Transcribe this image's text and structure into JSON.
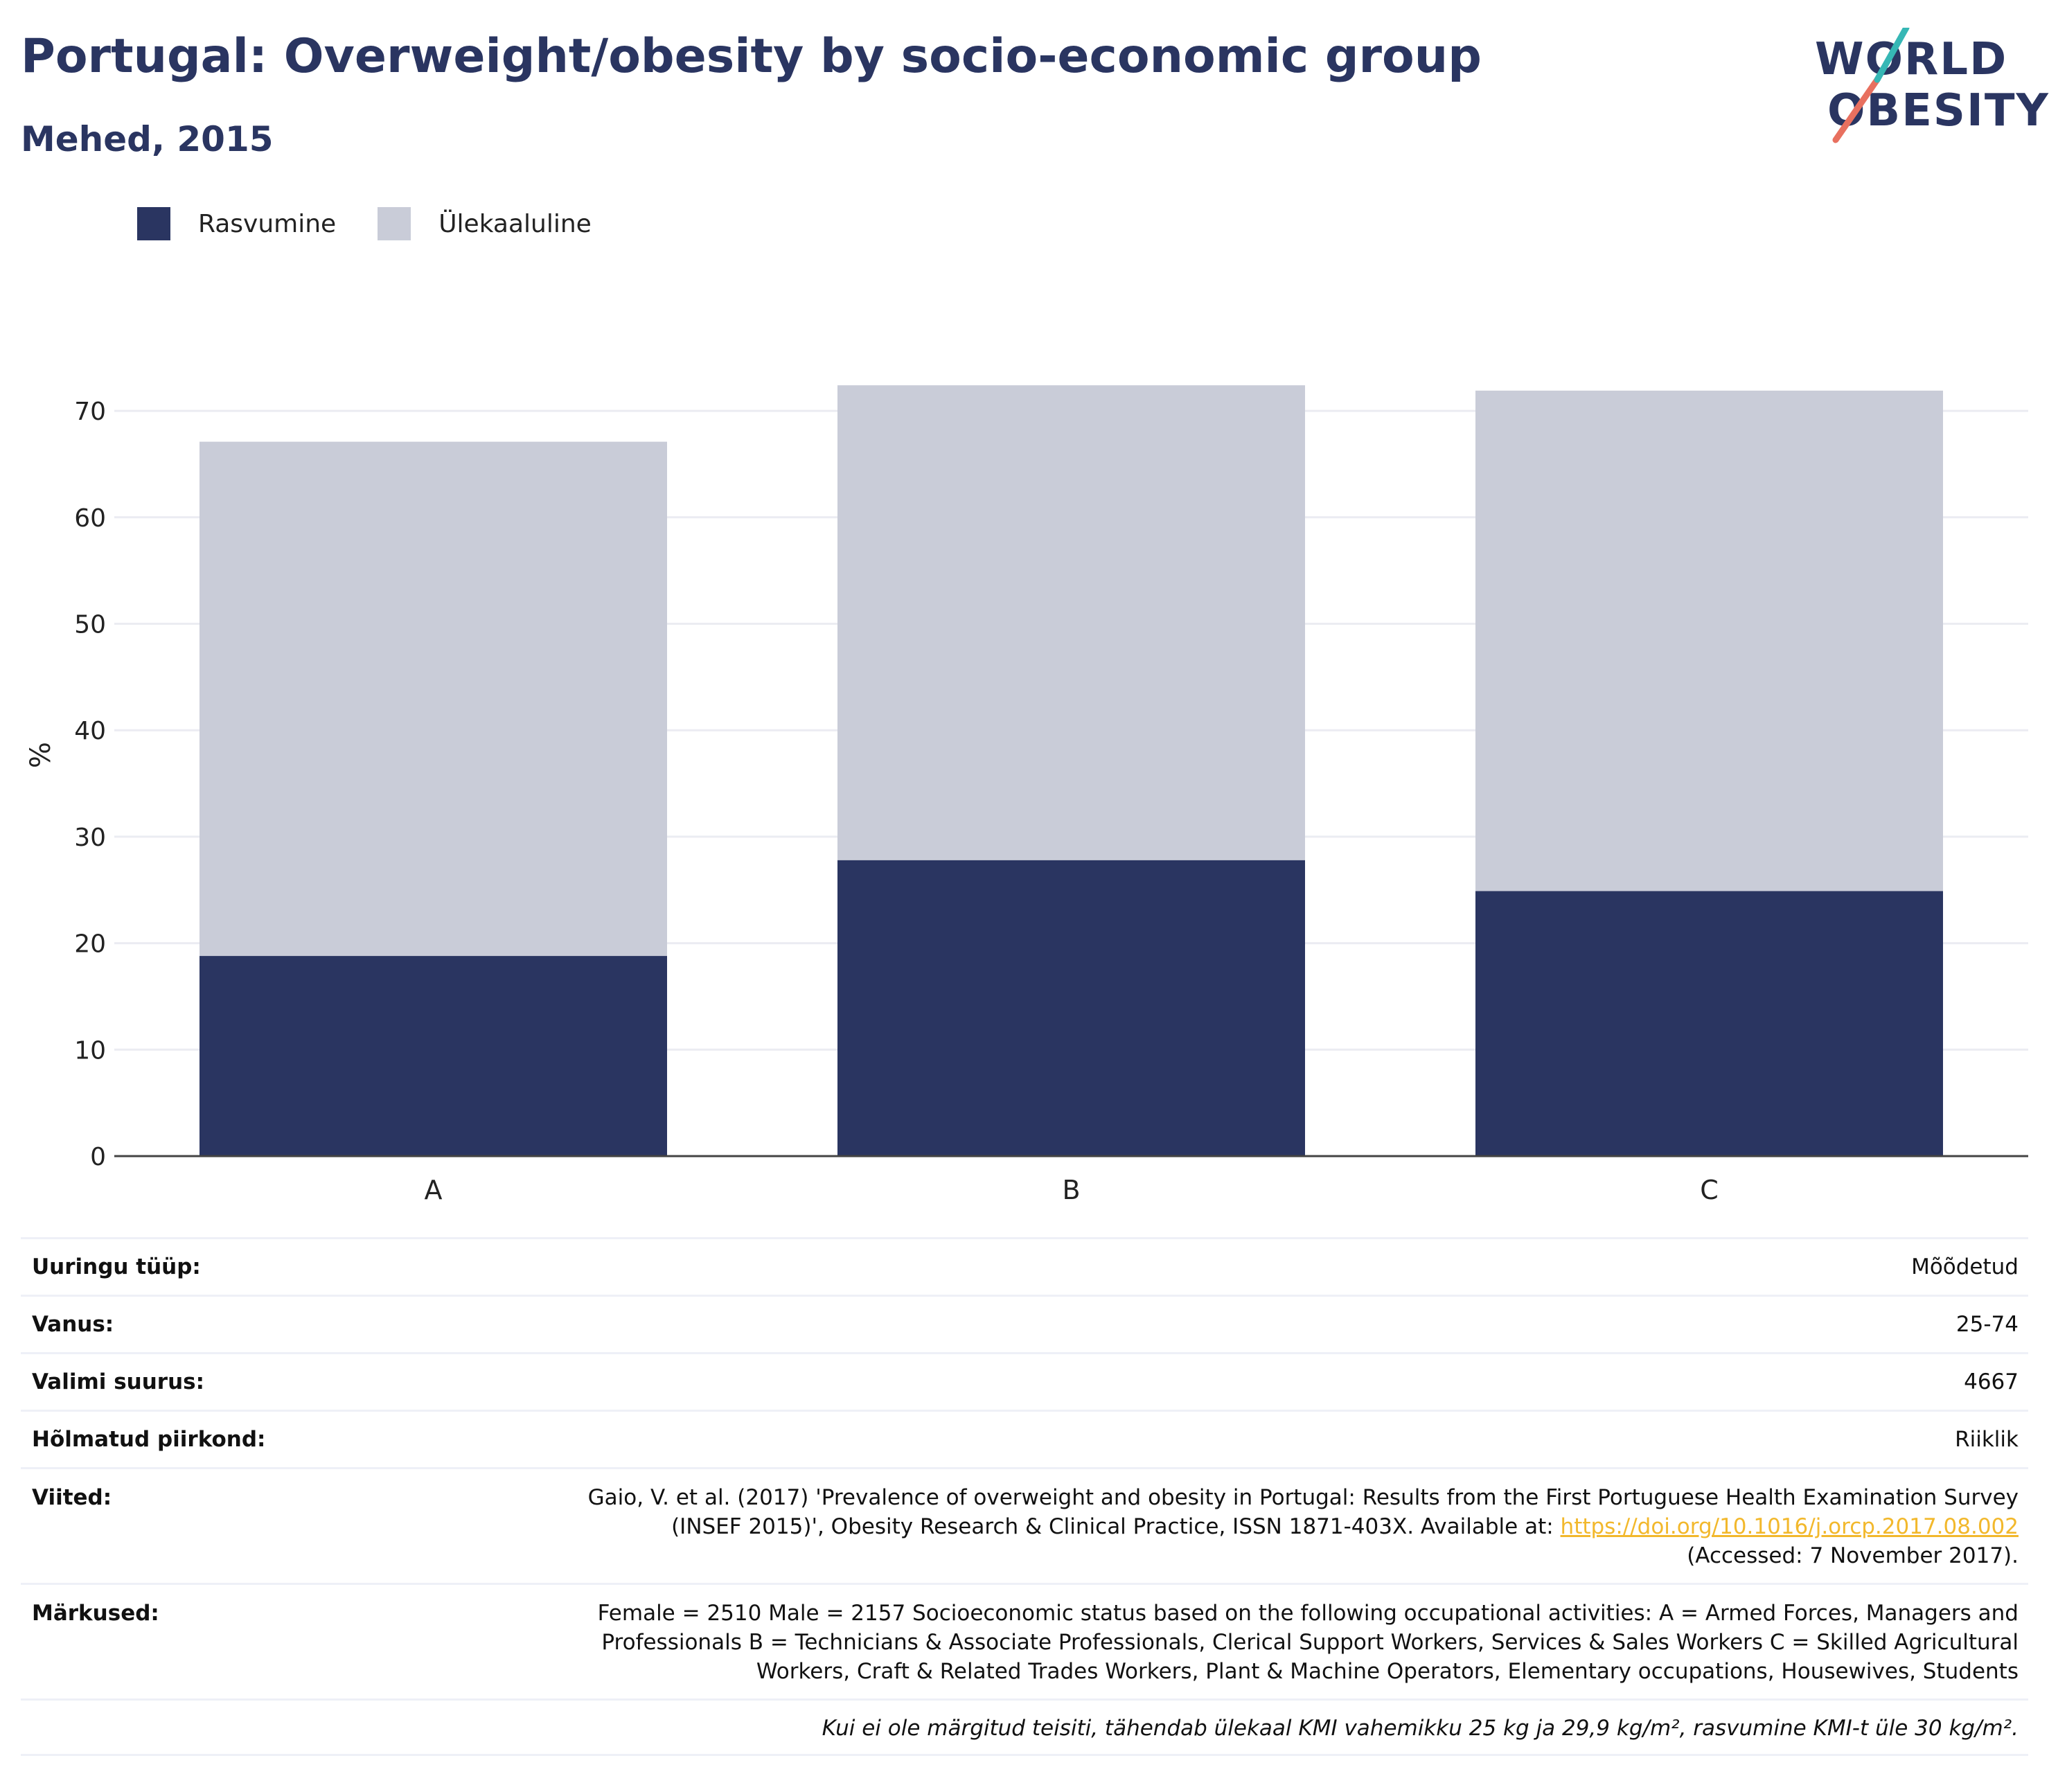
{
  "header": {
    "title": "Portugal: Overweight/obesity by socio-economic group",
    "subtitle": "Mehed, 2015"
  },
  "logo": {
    "line1": "WORLD",
    "line2": "OBESITY",
    "accent_teal": "#36b7b5",
    "accent_coral": "#e8705f"
  },
  "legend": [
    {
      "label": "Rasvumine",
      "color": "#2a3561"
    },
    {
      "label": "Ülekaaluline",
      "color": "#c9ccd8"
    }
  ],
  "chart_data": {
    "type": "bar",
    "stacked": true,
    "categories": [
      "A",
      "B",
      "C"
    ],
    "series": [
      {
        "name": "Rasvumine",
        "color": "#2a3561",
        "values": [
          18.8,
          27.8,
          24.9
        ]
      },
      {
        "name": "Ülekaaluline",
        "color": "#c9ccd8",
        "values": [
          48.3,
          44.6,
          47.0
        ]
      }
    ],
    "title": "Portugal: Overweight/obesity by socio-economic group",
    "subtitle": "Mehed, 2015",
    "xlabel": "",
    "ylabel": "%",
    "ylim": [
      0,
      75
    ],
    "yticks": [
      0,
      10,
      20,
      30,
      40,
      50,
      60,
      70
    ],
    "grid": true,
    "legend_position": "top-left"
  },
  "info": {
    "survey_type": {
      "label": "Uuringu tüüp:",
      "value": "Mõõdetud"
    },
    "age": {
      "label": "Vanus:",
      "value": "25-74"
    },
    "sample_size": {
      "label": "Valimi suurus:",
      "value": "4667"
    },
    "area": {
      "label": "Hõlmatud piirkond:",
      "value": "Riiklik"
    },
    "references": {
      "label": "Viited:",
      "line1": "Gaio, V. et al. (2017) 'Prevalence of overweight and obesity in Portugal: Results from the First Portuguese Health Examination Survey",
      "line2_text": "(INSEF 2015)', Obesity Research & Clinical Practice, ISSN 1871-403X. Available at: ",
      "link": "https://doi.org/10.1016/j.orcp.2017.08.002",
      "line3": "(Accessed: 7 November 2017)."
    },
    "notes": {
      "label": "Märkused:",
      "line1": "Female = 2510 Male = 2157 Socioeconomic status based on the following occupational activities: A = Armed Forces, Managers and",
      "line2": "Professionals B = Technicians & Associate Professionals, Clerical Support Workers, Services & Sales Workers C = Skilled Agricultural",
      "line3": "Workers, Craft & Related Trades Workers, Plant & Machine Operators, Elementary occupations, Housewives, Students"
    },
    "footnote": "Kui ei ole märgitud teisiti, tähendab ülekaal KMI vahemikku 25 kg ja 29,9 kg/m², rasvumine KMI-t üle 30 kg/m²."
  }
}
